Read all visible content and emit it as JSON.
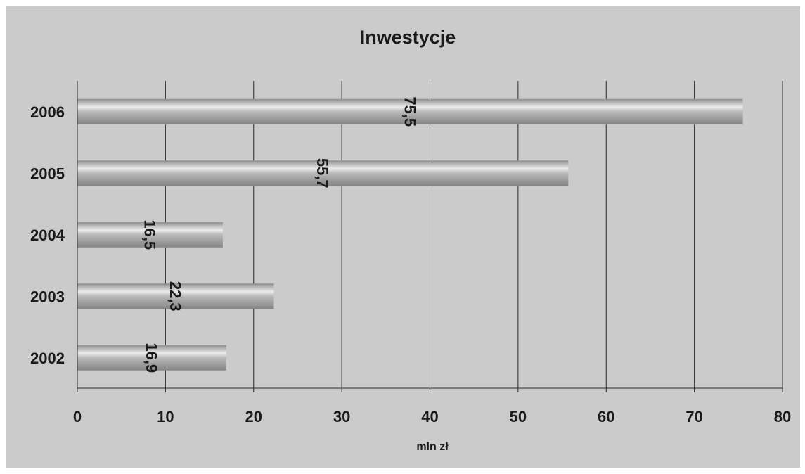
{
  "chart_data": {
    "type": "bar",
    "orientation": "horizontal",
    "title": "Inwestycje",
    "xlabel": "mln zł",
    "ylabel": "",
    "categories": [
      "2002",
      "2003",
      "2004",
      "2005",
      "2006"
    ],
    "values": [
      16.9,
      22.3,
      16.5,
      55.7,
      75.5
    ],
    "data_labels": [
      "16,9",
      "22,3",
      "16,5",
      "55,7",
      "75,5"
    ],
    "xlim": [
      0,
      80
    ],
    "x_ticks": [
      "0",
      "10",
      "20",
      "30",
      "40",
      "50",
      "60",
      "70",
      "80"
    ],
    "grid": true,
    "legend": "none"
  }
}
